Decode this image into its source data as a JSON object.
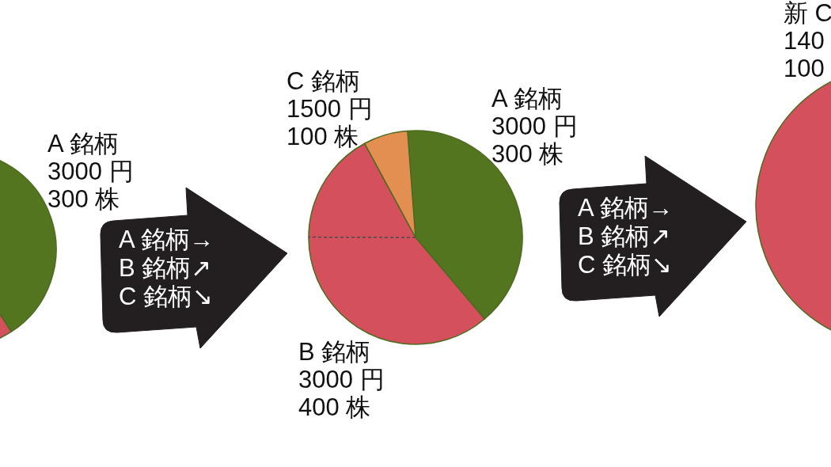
{
  "chart_data": [
    {
      "type": "pie",
      "categories": [
        "A 銘柄\n3000 円\n300 株",
        null
      ],
      "values": [
        42,
        58
      ],
      "colors": [
        "#537520",
        "#d5505d"
      ]
    },
    {
      "type": "other",
      "annotations": [
        "A 銘柄→",
        "B 銘柄↗",
        "C 銘柄↘"
      ]
    },
    {
      "type": "pie",
      "categories": [
        "A 銘柄\n3000 円\n300 株",
        "B 銘柄\n3000 円\n400 株",
        "C 銘柄\n1500 円\n100 株"
      ],
      "values": [
        40,
        53.3,
        6.7
      ],
      "colors": [
        "#537520",
        "#d5505d",
        "#e38f52"
      ],
      "needle": "B 銘柄\n3000 円\n400 株"
    },
    {
      "type": "other",
      "annotations": [
        "A 銘柄→",
        "B 銘柄↗",
        "C 銘柄↘"
      ]
    },
    {
      "type": "pie",
      "categories": [
        null
      ],
      "values": [
        100
      ],
      "colors": [
        "#d5505d"
      ],
      "annotations": [
        "新 C\n140\n100"
      ]
    }
  ]
}
